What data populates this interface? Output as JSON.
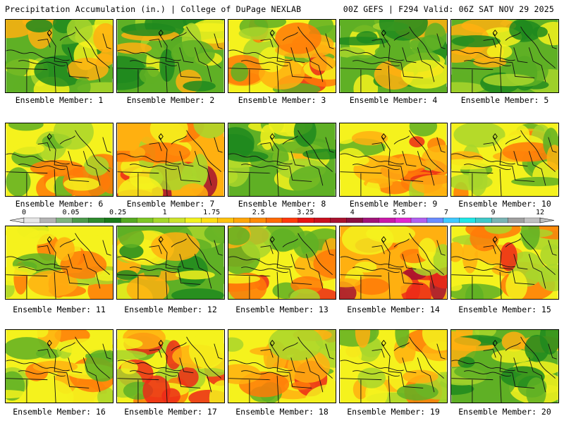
{
  "header": {
    "left_title": "Precipitation Accumulation (in.) | College of DuPage NEXLAB",
    "right_title": "00Z GEFS | F294 Valid: 06Z SAT NOV 29 2025"
  },
  "panels": [
    {
      "label": "Ensemble Member: 1",
      "theme": "moist"
    },
    {
      "label": "Ensemble Member: 2",
      "theme": "moist"
    },
    {
      "label": "Ensemble Member: 3",
      "theme": "mixed"
    },
    {
      "label": "Ensemble Member: 4",
      "theme": "moist"
    },
    {
      "label": "Ensemble Member: 5",
      "theme": "moist"
    },
    {
      "label": "Ensemble Member: 6",
      "theme": "drier"
    },
    {
      "label": "Ensemble Member: 7",
      "theme": "wet"
    },
    {
      "label": "Ensemble Member: 8",
      "theme": "moist"
    },
    {
      "label": "Ensemble Member: 9",
      "theme": "mixed"
    },
    {
      "label": "Ensemble Member: 10",
      "theme": "drier"
    },
    {
      "label": "Ensemble Member: 11",
      "theme": "drier"
    },
    {
      "label": "Ensemble Member: 12",
      "theme": "moist"
    },
    {
      "label": "Ensemble Member: 13",
      "theme": "mixed"
    },
    {
      "label": "Ensemble Member: 14",
      "theme": "wet"
    },
    {
      "label": "Ensemble Member: 15",
      "theme": "mixed"
    },
    {
      "label": "Ensemble Member: 16",
      "theme": "drier"
    },
    {
      "label": "Ensemble Member: 17",
      "theme": "mixed"
    },
    {
      "label": "Ensemble Member: 18",
      "theme": "mixed"
    },
    {
      "label": "Ensemble Member: 19",
      "theme": "drier"
    },
    {
      "label": "Ensemble Member: 20",
      "theme": "moist"
    }
  ],
  "colorbar": {
    "labels": [
      "0",
      "0.05",
      "0.25",
      "1",
      "1.75",
      "2.5",
      "3.25",
      "4",
      "5.5",
      "7",
      "9",
      "12"
    ],
    "colors": [
      "#e6e6e6",
      "#b4b4b4",
      "#7fb37f",
      "#4c9a4c",
      "#2e8b2e",
      "#1a7a1a",
      "#55aa22",
      "#7ec626",
      "#a6d72a",
      "#cde32c",
      "#f2f21e",
      "#ffde14",
      "#ffc20e",
      "#ffa50a",
      "#ff8a08",
      "#ff6a06",
      "#ff3a0c",
      "#e61414",
      "#c8101e",
      "#a8122e",
      "#8a1040",
      "#a01478",
      "#c81aa8",
      "#e028d0",
      "#b060f0",
      "#6a8cff",
      "#40c8ff",
      "#20e6e6",
      "#40c8c8",
      "#7ab4b4",
      "#a0a0a0",
      "#c0c0c0"
    ]
  },
  "palette": {
    "yellow": "#f5f21d",
    "light_green": "#a9d62b",
    "mid_green": "#5fb025",
    "dark_green": "#1f8a1f",
    "deep_green": "#0f6e2a",
    "orange": "#ffb010",
    "dark_orange": "#ff7a08",
    "red": "#ec2a18",
    "maroon": "#a51030",
    "magenta": "#c81aa8"
  }
}
